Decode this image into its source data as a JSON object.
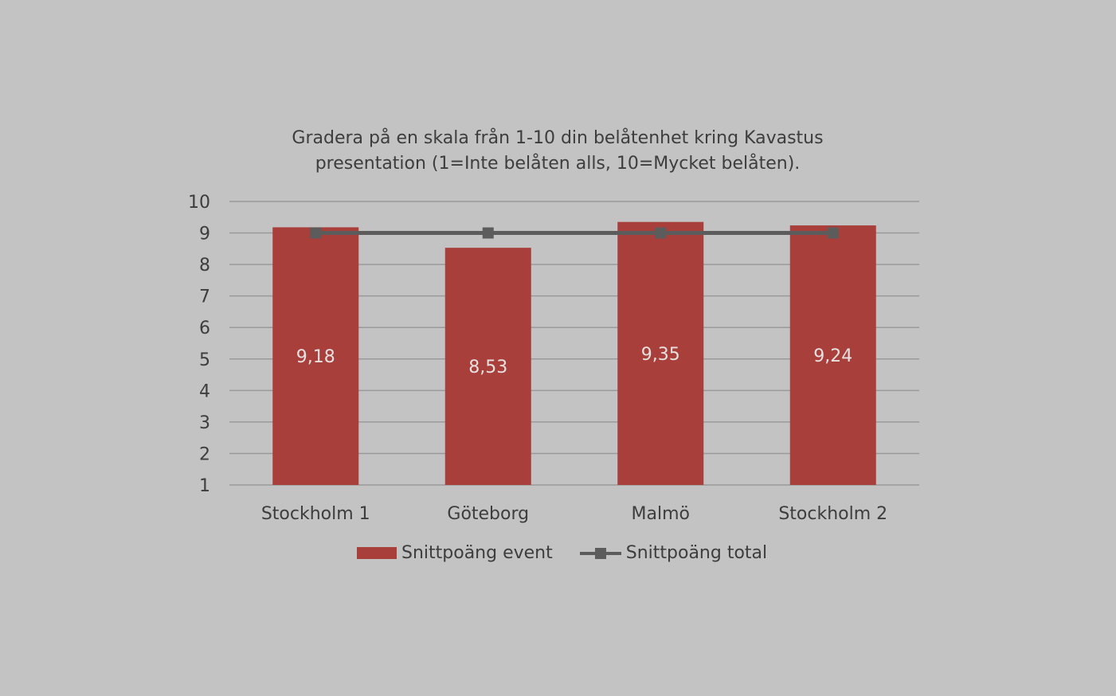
{
  "chart_data": {
    "type": "bar",
    "title_line1": "Gradera på en skala från 1-10 din belåtenhet kring Kavastus",
    "title_line2": "presentation (1=Inte belåten alls, 10=Mycket belåten).",
    "categories": [
      "Stockholm 1",
      "Göteborg",
      "Malmö",
      "Stockholm 2"
    ],
    "series": [
      {
        "name": "Snittpoäng event",
        "type": "bar",
        "color": "#a83f3a",
        "values": [
          9.18,
          8.53,
          9.35,
          9.24
        ],
        "labels": [
          "9,18",
          "8,53",
          "9,35",
          "9,24"
        ]
      },
      {
        "name": "Snittpoäng total",
        "type": "line",
        "color": "#5c5c5c",
        "marker": "square",
        "values": [
          9,
          9,
          9,
          9
        ]
      }
    ],
    "ylim": [
      1,
      10
    ],
    "yticks": [
      "1",
      "2",
      "3",
      "4",
      "5",
      "6",
      "7",
      "8",
      "9",
      "10"
    ],
    "grid": true,
    "legend_position": "bottom",
    "label_color": "#e8e1e1",
    "grid_color": "#9a9a9a"
  }
}
